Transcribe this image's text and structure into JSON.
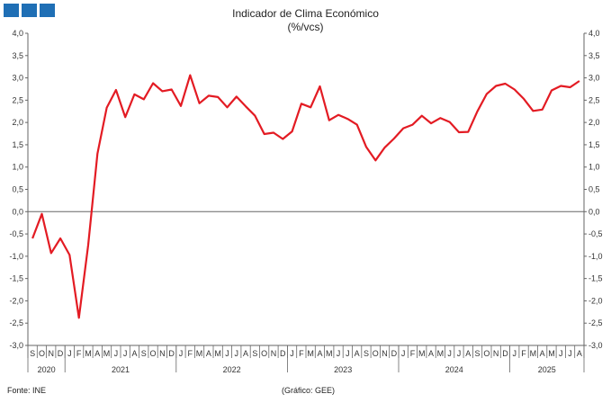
{
  "header": {
    "logo_colors": [
      "#1f6fb5",
      "#1f6fb5",
      "#1f6fb5"
    ]
  },
  "footer": {
    "source": "Fonte: INE",
    "credit": "(Gráfico: GEE)"
  },
  "chart_data": {
    "type": "line",
    "title": "Indicador de Clima Económico",
    "subtitle": "(%/vcs)",
    "xlabel": "",
    "ylabel": "",
    "ylim": [
      -3.0,
      4.0
    ],
    "yticks": [
      "-3,0",
      "-2,5",
      "-2,0",
      "-1,5",
      "-1,0",
      "-0,5",
      "0,0",
      "0,5",
      "1,0",
      "1,5",
      "2,0",
      "2,5",
      "3,0",
      "3,5",
      "4,0"
    ],
    "grid": false,
    "legend": "none",
    "line_color": "#e31b23",
    "month_labels": [
      "S",
      "O",
      "N",
      "D",
      "J",
      "F",
      "M",
      "A",
      "M",
      "J",
      "J",
      "A",
      "S",
      "O",
      "N",
      "D",
      "J",
      "F",
      "M",
      "A",
      "M",
      "J",
      "J",
      "A",
      "S",
      "O",
      "N",
      "D",
      "J",
      "F",
      "M",
      "A",
      "M",
      "J",
      "J",
      "A",
      "S",
      "O",
      "N",
      "D",
      "J",
      "F",
      "M",
      "A",
      "M",
      "J",
      "J",
      "A",
      "S",
      "O",
      "N",
      "D",
      "J",
      "F",
      "M",
      "A",
      "M",
      "J",
      "J",
      "A"
    ],
    "year_labels": [
      "2020",
      "2021",
      "2022",
      "2023",
      "2024",
      "2025"
    ],
    "series": [
      {
        "values": [
          -0.6,
          -0.05,
          -0.93,
          -0.6,
          -0.97,
          -2.38,
          -0.75,
          1.3,
          2.33,
          2.73,
          2.12,
          2.63,
          2.52,
          2.88,
          2.7,
          2.74,
          2.37,
          3.06,
          2.43,
          2.6,
          2.57,
          2.34,
          2.58,
          2.36,
          2.15,
          1.74,
          1.77,
          1.63,
          1.8,
          2.42,
          2.34,
          2.81,
          2.05,
          2.17,
          2.08,
          1.95,
          1.45,
          1.15,
          1.44,
          1.64,
          1.87,
          1.95,
          2.15,
          1.98,
          2.1,
          2.01,
          1.78,
          1.79,
          2.25,
          2.64,
          2.82,
          2.87,
          2.74,
          2.53,
          2.26,
          2.29,
          2.72,
          2.82,
          2.79,
          2.93
        ]
      }
    ]
  }
}
